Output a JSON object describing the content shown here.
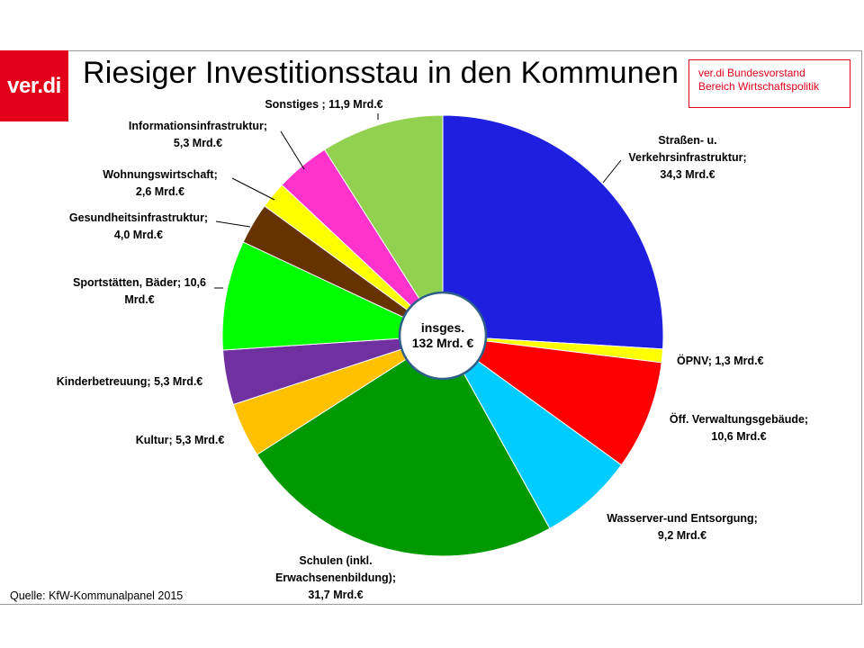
{
  "header": {
    "logo_text": "ver.di",
    "title": "Riesiger Investitionsstau in den Kommunen",
    "source_box": {
      "line1": "ver.di Bundesvorstand",
      "line2": "Bereich Wirtschaftspolitik"
    }
  },
  "footer": {
    "source": "Quelle: KfW-Kommunalpanel  2015"
  },
  "chart_data": {
    "type": "pie",
    "title": "Riesiger Investitionsstau in den Kommunen",
    "unit": "Mrd.€",
    "center_label": [
      "insges.",
      "132 Mrd. €"
    ],
    "total": 132,
    "slices": [
      {
        "name": "Straßen- u. Verkehrsinfrastruktur",
        "value": 34.3,
        "color": "#1f1fe0",
        "label": [
          "Straßen- u.",
          "Verkehrsinfrastruktur;",
          "34,3 Mrd.€"
        ]
      },
      {
        "name": "ÖPNV",
        "value": 1.3,
        "color": "#ffff00",
        "label": [
          "ÖPNV; 1,3 Mrd.€"
        ]
      },
      {
        "name": "Öff. Verwaltungsgebäude",
        "value": 10.6,
        "color": "#ff0000",
        "label": [
          "Öff. Verwaltungsgebäude;",
          "10,6 Mrd.€"
        ]
      },
      {
        "name": "Wasserver-und Entsorgung",
        "value": 9.2,
        "color": "#00ccff",
        "label": [
          "Wasserver-und Entsorgung;",
          "9,2 Mrd.€"
        ]
      },
      {
        "name": "Schulen (inkl. Erwachsenenbildung)",
        "value": 31.7,
        "color": "#009900",
        "label": [
          "Schulen (inkl.",
          "Erwachsenenbildung);",
          "31,7 Mrd.€"
        ]
      },
      {
        "name": "Kultur",
        "value": 5.3,
        "color": "#ffc000",
        "label": [
          "Kultur; 5,3 Mrd.€"
        ]
      },
      {
        "name": "Kinderbetreuung",
        "value": 5.3,
        "color": "#7030a0",
        "label": [
          "Kinderbetreuung; 5,3 Mrd.€"
        ]
      },
      {
        "name": "Sportstätten, Bäder",
        "value": 10.6,
        "color": "#00ff00",
        "label": [
          "Sportstätten, Bäder; 10,6",
          "Mrd.€"
        ]
      },
      {
        "name": "Gesundheitsinfrastruktur",
        "value": 4.0,
        "color": "#663300",
        "label": [
          "Gesundheitsinfrastruktur;",
          "4,0 Mrd.€"
        ]
      },
      {
        "name": "Wohnungswirtschaft",
        "value": 2.6,
        "color": "#ffff00",
        "label": [
          "Wohnungswirtschaft;",
          "2,6 Mrd.€"
        ]
      },
      {
        "name": "Informationsinfrastruktur",
        "value": 5.3,
        "color": "#ff33cc",
        "label": [
          "Informationsinfrastruktur;",
          "5,3 Mrd.€"
        ]
      },
      {
        "name": "Sonstiges",
        "value": 11.9,
        "color": "#92d050",
        "label": [
          "Sonstiges ; 11,9 Mrd.€"
        ]
      }
    ]
  }
}
